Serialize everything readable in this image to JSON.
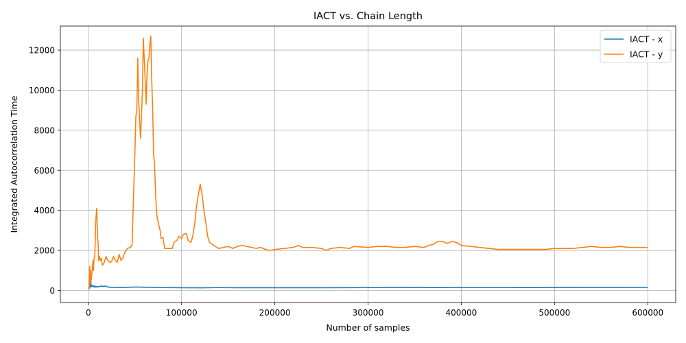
{
  "chart_data": {
    "type": "line",
    "title": "IACT vs. Chain Length",
    "xlabel": "Number of samples",
    "ylabel": "Integrated Autocorrelation Time",
    "xlim": [
      -30000,
      630000
    ],
    "ylim": [
      -600,
      13200
    ],
    "xticks": [
      0,
      100000,
      200000,
      300000,
      400000,
      500000,
      600000
    ],
    "yticks": [
      0,
      2000,
      4000,
      6000,
      8000,
      10000,
      12000
    ],
    "grid": true,
    "legend_position": "top-right",
    "series": [
      {
        "name": "IACT - x",
        "color": "#1f77b4",
        "points": [
          [
            1000,
            50
          ],
          [
            1500,
            300
          ],
          [
            2000,
            150
          ],
          [
            2500,
            600
          ],
          [
            3000,
            200
          ],
          [
            4000,
            260
          ],
          [
            5000,
            180
          ],
          [
            6000,
            240
          ],
          [
            7000,
            160
          ],
          [
            8000,
            210
          ],
          [
            9000,
            170
          ],
          [
            10000,
            200
          ],
          [
            12000,
            190
          ],
          [
            14000,
            230
          ],
          [
            16000,
            200
          ],
          [
            18000,
            230
          ],
          [
            20000,
            180
          ],
          [
            25000,
            160
          ],
          [
            30000,
            155
          ],
          [
            35000,
            150
          ],
          [
            40000,
            160
          ],
          [
            45000,
            165
          ],
          [
            50000,
            175
          ],
          [
            55000,
            170
          ],
          [
            60000,
            165
          ],
          [
            70000,
            160
          ],
          [
            80000,
            145
          ],
          [
            100000,
            140
          ],
          [
            120000,
            135
          ],
          [
            140000,
            145
          ],
          [
            160000,
            140
          ],
          [
            200000,
            140
          ],
          [
            250000,
            140
          ],
          [
            300000,
            145
          ],
          [
            350000,
            150
          ],
          [
            400000,
            145
          ],
          [
            450000,
            145
          ],
          [
            500000,
            150
          ],
          [
            550000,
            155
          ],
          [
            600000,
            160
          ]
        ]
      },
      {
        "name": "IACT - y",
        "color": "#ff7f0e",
        "points": [
          [
            1000,
            50
          ],
          [
            1500,
            1200
          ],
          [
            2000,
            300
          ],
          [
            2500,
            1000
          ],
          [
            3000,
            500
          ],
          [
            4000,
            900
          ],
          [
            5000,
            1500
          ],
          [
            5500,
            1000
          ],
          [
            6000,
            1500
          ],
          [
            7000,
            1800
          ],
          [
            8000,
            3500
          ],
          [
            9000,
            4100
          ],
          [
            10000,
            2600
          ],
          [
            10500,
            2400
          ],
          [
            11000,
            1500
          ],
          [
            12000,
            1700
          ],
          [
            13000,
            1500
          ],
          [
            14000,
            1600
          ],
          [
            15000,
            1250
          ],
          [
            17000,
            1400
          ],
          [
            19000,
            1700
          ],
          [
            21000,
            1500
          ],
          [
            23000,
            1400
          ],
          [
            25000,
            1450
          ],
          [
            27000,
            1700
          ],
          [
            29000,
            1500
          ],
          [
            31000,
            1400
          ],
          [
            33000,
            1800
          ],
          [
            35000,
            1500
          ],
          [
            37000,
            1600
          ],
          [
            39000,
            1900
          ],
          [
            42000,
            2100
          ],
          [
            45000,
            2150
          ],
          [
            47000,
            2300
          ],
          [
            48000,
            4000
          ],
          [
            50000,
            7000
          ],
          [
            51000,
            8700
          ],
          [
            52000,
            9000
          ],
          [
            53000,
            11600
          ],
          [
            54000,
            9500
          ],
          [
            55000,
            8500
          ],
          [
            56000,
            7600
          ],
          [
            57000,
            8700
          ],
          [
            58000,
            10000
          ],
          [
            59000,
            12600
          ],
          [
            60000,
            11500
          ],
          [
            61000,
            10500
          ],
          [
            62000,
            9300
          ],
          [
            63000,
            10800
          ],
          [
            64000,
            11500
          ],
          [
            65000,
            11600
          ],
          [
            66000,
            12300
          ],
          [
            67000,
            12700
          ],
          [
            68000,
            10500
          ],
          [
            69000,
            9000
          ],
          [
            70000,
            6800
          ],
          [
            71000,
            6300
          ],
          [
            72000,
            5000
          ],
          [
            73000,
            4000
          ],
          [
            74000,
            3600
          ],
          [
            75000,
            3400
          ],
          [
            77000,
            3000
          ],
          [
            78000,
            2600
          ],
          [
            80000,
            2650
          ],
          [
            82000,
            2100
          ],
          [
            85000,
            2100
          ],
          [
            90000,
            2100
          ],
          [
            92000,
            2400
          ],
          [
            95000,
            2500
          ],
          [
            97000,
            2700
          ],
          [
            100000,
            2600
          ],
          [
            102000,
            2800
          ],
          [
            105000,
            2850
          ],
          [
            107000,
            2500
          ],
          [
            110000,
            2400
          ],
          [
            112000,
            2700
          ],
          [
            114000,
            3300
          ],
          [
            116000,
            4200
          ],
          [
            118000,
            4800
          ],
          [
            120000,
            5300
          ],
          [
            122000,
            4800
          ],
          [
            124000,
            4000
          ],
          [
            126000,
            3400
          ],
          [
            128000,
            2700
          ],
          [
            130000,
            2400
          ],
          [
            133000,
            2300
          ],
          [
            136000,
            2200
          ],
          [
            140000,
            2100
          ],
          [
            145000,
            2150
          ],
          [
            150000,
            2200
          ],
          [
            155000,
            2100
          ],
          [
            160000,
            2200
          ],
          [
            165000,
            2250
          ],
          [
            170000,
            2200
          ],
          [
            175000,
            2150
          ],
          [
            180000,
            2100
          ],
          [
            185000,
            2150
          ],
          [
            190000,
            2050
          ],
          [
            195000,
            2000
          ],
          [
            200000,
            2050
          ],
          [
            210000,
            2100
          ],
          [
            220000,
            2150
          ],
          [
            225000,
            2250
          ],
          [
            230000,
            2150
          ],
          [
            240000,
            2150
          ],
          [
            250000,
            2100
          ],
          [
            255000,
            2000
          ],
          [
            260000,
            2100
          ],
          [
            270000,
            2150
          ],
          [
            280000,
            2100
          ],
          [
            285000,
            2200
          ],
          [
            300000,
            2150
          ],
          [
            310000,
            2200
          ],
          [
            320000,
            2200
          ],
          [
            330000,
            2150
          ],
          [
            340000,
            2150
          ],
          [
            350000,
            2200
          ],
          [
            360000,
            2150
          ],
          [
            365000,
            2250
          ],
          [
            370000,
            2300
          ],
          [
            375000,
            2450
          ],
          [
            380000,
            2450
          ],
          [
            385000,
            2350
          ],
          [
            390000,
            2450
          ],
          [
            395000,
            2400
          ],
          [
            400000,
            2250
          ],
          [
            410000,
            2200
          ],
          [
            420000,
            2150
          ],
          [
            430000,
            2100
          ],
          [
            440000,
            2050
          ],
          [
            450000,
            2050
          ],
          [
            460000,
            2050
          ],
          [
            470000,
            2050
          ],
          [
            480000,
            2050
          ],
          [
            490000,
            2050
          ],
          [
            500000,
            2100
          ],
          [
            510000,
            2100
          ],
          [
            520000,
            2100
          ],
          [
            530000,
            2150
          ],
          [
            540000,
            2200
          ],
          [
            550000,
            2150
          ],
          [
            560000,
            2150
          ],
          [
            570000,
            2200
          ],
          [
            580000,
            2150
          ],
          [
            590000,
            2150
          ],
          [
            600000,
            2150
          ]
        ]
      }
    ]
  }
}
